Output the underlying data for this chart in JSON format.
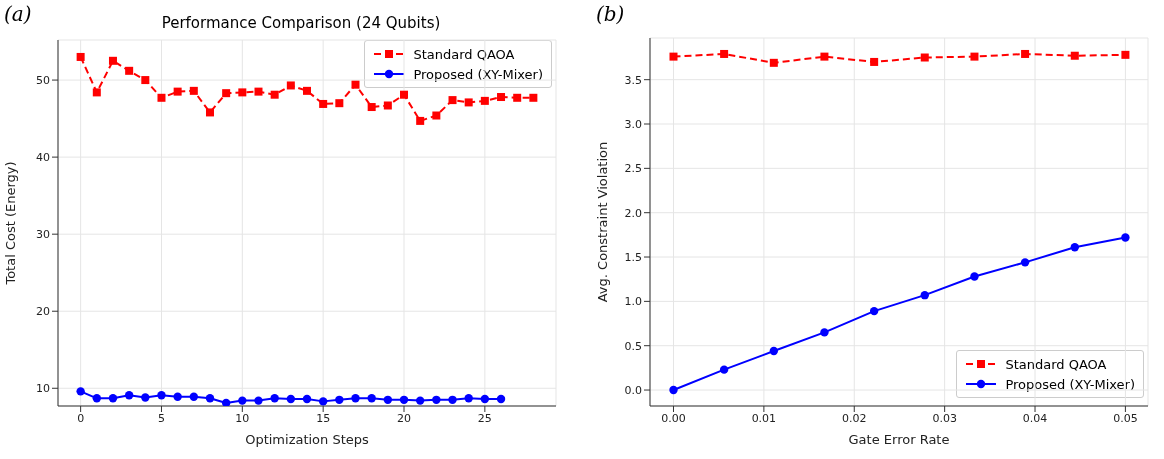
{
  "chart_data": [
    {
      "type": "line",
      "title": "Performance Comparison (24 Qubits)",
      "annotations": [
        "(a)"
      ],
      "xlabel": "Optimization Steps",
      "ylabel": "Total Cost (Energy)",
      "x": [
        0,
        1,
        2,
        3,
        4,
        5,
        6,
        7,
        8,
        9,
        10,
        11,
        12,
        13,
        14,
        15,
        16,
        17,
        18,
        19,
        20,
        21,
        22,
        23,
        24,
        25,
        26,
        27,
        28
      ],
      "series": [
        {
          "name": "Standard QAOA",
          "color": "#ff0000",
          "marker": "square",
          "line_style": "dashed",
          "values": [
            53.0,
            48.4,
            52.5,
            51.2,
            50.0,
            47.7,
            48.5,
            48.6,
            45.8,
            48.3,
            48.4,
            48.5,
            48.1,
            49.3,
            48.6,
            46.9,
            47.0,
            49.4,
            46.5,
            46.7,
            48.1,
            44.7,
            45.4,
            47.4,
            47.1,
            47.3,
            47.8,
            47.7,
            47.7
          ]
        },
        {
          "name": "Proposed (XY-Mixer)",
          "color": "#0000ff",
          "marker": "circle",
          "line_style": "solid",
          "x": [
            0,
            1,
            2,
            3,
            4,
            5,
            6,
            7,
            8,
            9,
            10,
            11,
            12,
            13,
            14,
            15,
            16,
            17,
            18,
            19,
            20,
            21,
            22,
            23,
            24,
            25,
            26
          ],
          "values": [
            9.6,
            8.7,
            8.7,
            9.1,
            8.8,
            9.1,
            8.9,
            8.9,
            8.7,
            8.1,
            8.4,
            8.4,
            8.7,
            8.6,
            8.6,
            8.3,
            8.5,
            8.7,
            8.7,
            8.5,
            8.5,
            8.4,
            8.5,
            8.5,
            8.7,
            8.6,
            8.6
          ]
        }
      ],
      "xlim": [
        -1.4,
        29.4
      ],
      "xticks": [
        0,
        5,
        10,
        15,
        20,
        25
      ],
      "ylim": [
        7.7,
        55.2
      ],
      "yticks": [
        10,
        20,
        30,
        40,
        50
      ],
      "grid": true,
      "legend": "top right"
    },
    {
      "type": "line",
      "annotations": [
        "(b)"
      ],
      "xlabel": "Gate Error Rate",
      "ylabel": "Avg. Constraint Violation",
      "x": [
        0,
        0.0056,
        0.0111,
        0.0167,
        0.0222,
        0.0278,
        0.0333,
        0.0389,
        0.0444,
        0.05
      ],
      "series": [
        {
          "name": "Standard QAOA",
          "color": "#ff0000",
          "marker": "square",
          "line_style": "dashed",
          "values": [
            3.76,
            3.79,
            3.69,
            3.76,
            3.7,
            3.75,
            3.76,
            3.79,
            3.77,
            3.78
          ]
        },
        {
          "name": "Proposed (XY-Mixer)",
          "color": "#0000ff",
          "marker": "circle",
          "line_style": "solid",
          "values": [
            0,
            0.23,
            0.44,
            0.65,
            0.89,
            1.07,
            1.28,
            1.44,
            1.61,
            1.72
          ]
        }
      ],
      "xlim": [
        -0.0026,
        0.0525
      ],
      "xticks": [
        {
          "value": 0,
          "label": "0.00"
        },
        {
          "value": 0.01,
          "label": "0.01"
        },
        {
          "value": 0.02,
          "label": "0.02"
        },
        {
          "value": 0.03,
          "label": "0.03"
        },
        {
          "value": 0.04,
          "label": "0.04"
        },
        {
          "value": 0.05,
          "label": "0.05"
        }
      ],
      "ylim": [
        -0.18,
        3.97
      ],
      "yticks": [
        {
          "value": 0,
          "label": "0.0"
        },
        {
          "value": 0.5,
          "label": "0.5"
        },
        {
          "value": 1,
          "label": "1.0"
        },
        {
          "value": 1.5,
          "label": "1.5"
        },
        {
          "value": 2,
          "label": "2.0"
        },
        {
          "value": 2.5,
          "label": "2.5"
        },
        {
          "value": 3,
          "label": "3.0"
        },
        {
          "value": 3.5,
          "label": "3.5"
        }
      ],
      "grid": true,
      "legend": "bottom right"
    }
  ]
}
